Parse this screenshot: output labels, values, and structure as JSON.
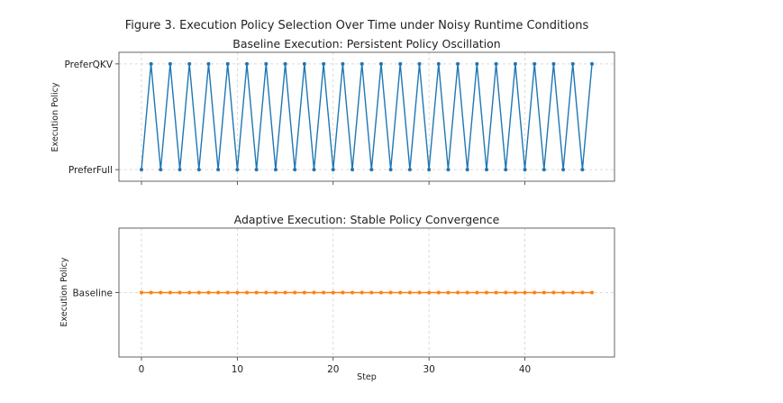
{
  "figure_title": "Figure 3. Execution Policy Selection Over Time under Noisy Runtime Conditions",
  "chart_data": [
    {
      "type": "line",
      "title": "Baseline Execution: Persistent Policy Oscillation",
      "xlabel": "",
      "ylabel": "Execution Policy",
      "categories_y": [
        "PreferFull",
        "PreferQKV"
      ],
      "x": [
        0,
        1,
        2,
        3,
        4,
        5,
        6,
        7,
        8,
        9,
        10,
        11,
        12,
        13,
        14,
        15,
        16,
        17,
        18,
        19,
        20,
        21,
        22,
        23,
        24,
        25,
        26,
        27,
        28,
        29,
        30,
        31,
        32,
        33,
        34,
        35,
        36,
        37,
        38,
        39,
        40,
        41,
        42,
        43,
        44,
        45,
        46,
        47
      ],
      "y": [
        "PreferFull",
        "PreferQKV",
        "PreferFull",
        "PreferQKV",
        "PreferFull",
        "PreferQKV",
        "PreferFull",
        "PreferQKV",
        "PreferFull",
        "PreferQKV",
        "PreferFull",
        "PreferQKV",
        "PreferFull",
        "PreferQKV",
        "PreferFull",
        "PreferQKV",
        "PreferFull",
        "PreferQKV",
        "PreferFull",
        "PreferQKV",
        "PreferFull",
        "PreferQKV",
        "PreferFull",
        "PreferQKV",
        "PreferFull",
        "PreferQKV",
        "PreferFull",
        "PreferQKV",
        "PreferFull",
        "PreferQKV",
        "PreferFull",
        "PreferQKV",
        "PreferFull",
        "PreferQKV",
        "PreferFull",
        "PreferQKV",
        "PreferFull",
        "PreferQKV",
        "PreferFull",
        "PreferQKV",
        "PreferFull",
        "PreferQKV",
        "PreferFull",
        "PreferQKV",
        "PreferFull",
        "PreferQKV",
        "PreferFull",
        "PreferQKV"
      ],
      "color": "#1f77b4",
      "marker": "circle",
      "xlim": [
        -2.35,
        49.35
      ],
      "xticks": [
        0,
        10,
        20,
        30,
        40
      ],
      "show_xtick_labels": false,
      "grid": true
    },
    {
      "type": "line",
      "title": "Adaptive Execution: Stable Policy Convergence",
      "xlabel": "Step",
      "ylabel": "Execution Policy",
      "categories_y": [
        "Baseline"
      ],
      "x": [
        0,
        1,
        2,
        3,
        4,
        5,
        6,
        7,
        8,
        9,
        10,
        11,
        12,
        13,
        14,
        15,
        16,
        17,
        18,
        19,
        20,
        21,
        22,
        23,
        24,
        25,
        26,
        27,
        28,
        29,
        30,
        31,
        32,
        33,
        34,
        35,
        36,
        37,
        38,
        39,
        40,
        41,
        42,
        43,
        44,
        45,
        46,
        47
      ],
      "y": [
        "Baseline",
        "Baseline",
        "Baseline",
        "Baseline",
        "Baseline",
        "Baseline",
        "Baseline",
        "Baseline",
        "Baseline",
        "Baseline",
        "Baseline",
        "Baseline",
        "Baseline",
        "Baseline",
        "Baseline",
        "Baseline",
        "Baseline",
        "Baseline",
        "Baseline",
        "Baseline",
        "Baseline",
        "Baseline",
        "Baseline",
        "Baseline",
        "Baseline",
        "Baseline",
        "Baseline",
        "Baseline",
        "Baseline",
        "Baseline",
        "Baseline",
        "Baseline",
        "Baseline",
        "Baseline",
        "Baseline",
        "Baseline",
        "Baseline",
        "Baseline",
        "Baseline",
        "Baseline",
        "Baseline",
        "Baseline",
        "Baseline",
        "Baseline",
        "Baseline",
        "Baseline",
        "Baseline",
        "Baseline"
      ],
      "color": "#ff7f0e",
      "marker": "circle",
      "xlim": [
        -2.35,
        49.35
      ],
      "xticks": [
        0,
        10,
        20,
        30,
        40
      ],
      "xtick_labels": [
        "0",
        "10",
        "20",
        "30",
        "40"
      ],
      "show_xtick_labels": true,
      "grid": true
    }
  ]
}
